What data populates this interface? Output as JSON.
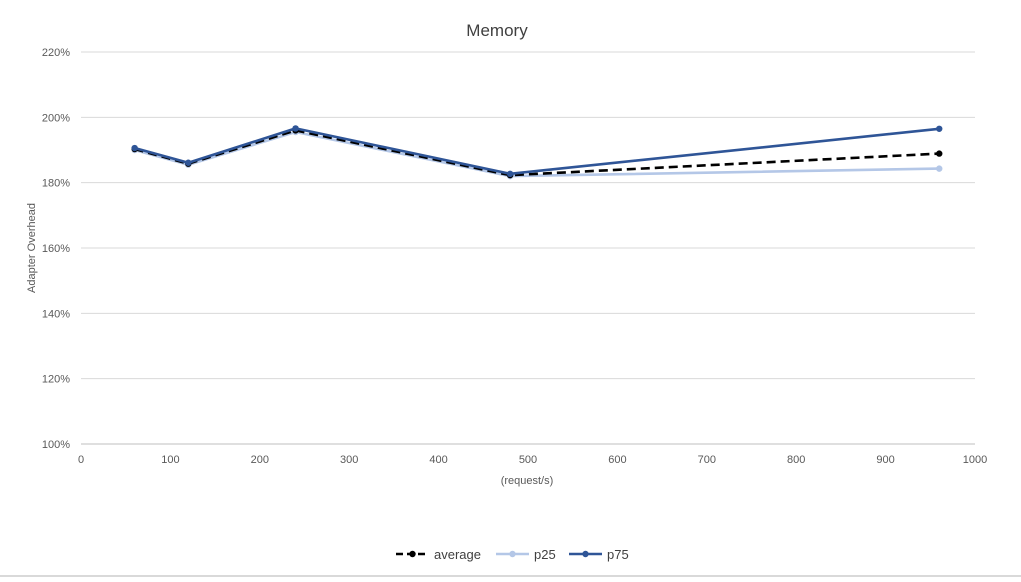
{
  "chart_data": {
    "type": "line",
    "title": "Memory",
    "xlabel": "(request/s)",
    "ylabel": "Adapter Overhead",
    "xlim": [
      0,
      1000
    ],
    "ylim": [
      1.0,
      2.2
    ],
    "x_ticks": [
      "0",
      "100",
      "200",
      "300",
      "400",
      "500",
      "600",
      "700",
      "800",
      "900",
      "1000"
    ],
    "y_ticks": [
      "100%",
      "120%",
      "140%",
      "160%",
      "180%",
      "200%",
      "220%"
    ],
    "grid": true,
    "legend_position": "bottom",
    "series": [
      {
        "name": "average",
        "color": "#000000",
        "style": "dashed",
        "x": [
          60,
          120,
          240,
          480,
          960
        ],
        "y": [
          1.903,
          1.858,
          1.96,
          1.823,
          1.889
        ]
      },
      {
        "name": "p25",
        "color": "#b4c7e7",
        "style": "solid",
        "x": [
          60,
          120,
          240,
          480,
          960
        ],
        "y": [
          1.9,
          1.855,
          1.955,
          1.82,
          1.843
        ]
      },
      {
        "name": "p75",
        "color": "#2f5597",
        "style": "solid",
        "x": [
          60,
          120,
          240,
          480,
          960
        ],
        "y": [
          1.906,
          1.861,
          1.966,
          1.827,
          1.965
        ]
      }
    ]
  }
}
